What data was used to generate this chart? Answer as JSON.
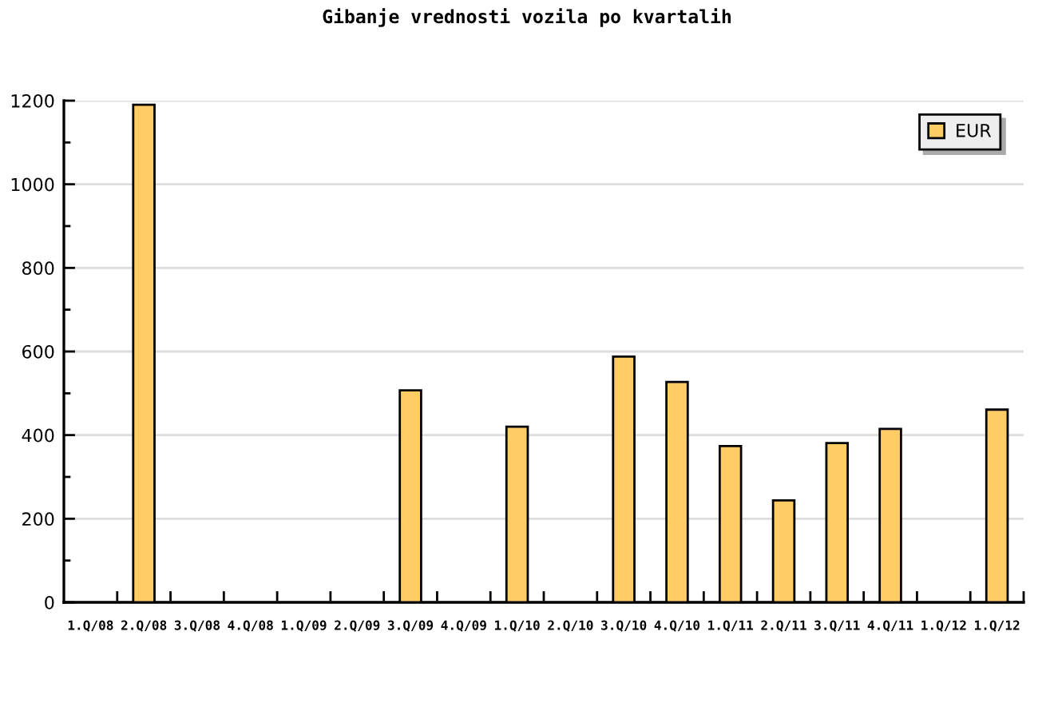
{
  "chart_data": {
    "type": "bar",
    "title": "Gibanje vrednosti vozila po kvartalih",
    "categories": [
      "1.Q/08",
      "2.Q/08",
      "3.Q/08",
      "4.Q/08",
      "1.Q/09",
      "2.Q/09",
      "3.Q/09",
      "4.Q/09",
      "1.Q/10",
      "2.Q/10",
      "3.Q/10",
      "4.Q/10",
      "1.Q/11",
      "2.Q/11",
      "3.Q/11",
      "4.Q/11",
      "1.Q/12",
      "1.Q/12"
    ],
    "series": [
      {
        "name": "EUR",
        "color": "#ffcc66",
        "values": [
          null,
          1190,
          null,
          null,
          null,
          null,
          507,
          null,
          420,
          null,
          588,
          527,
          374,
          244,
          381,
          415,
          null,
          461
        ]
      }
    ],
    "ylim": [
      0,
      1200
    ],
    "yticks": [
      0,
      {
        "value": 100,
        "label": null
      },
      200,
      {
        "value": 300,
        "label": null
      },
      400,
      {
        "value": 500,
        "label": null
      },
      600,
      {
        "value": 700,
        "label": null
      },
      800,
      {
        "value": 900,
        "label": null
      },
      1000,
      {
        "value": 1100,
        "label": null
      },
      1200
    ],
    "grid": "y",
    "legend": "top right"
  }
}
